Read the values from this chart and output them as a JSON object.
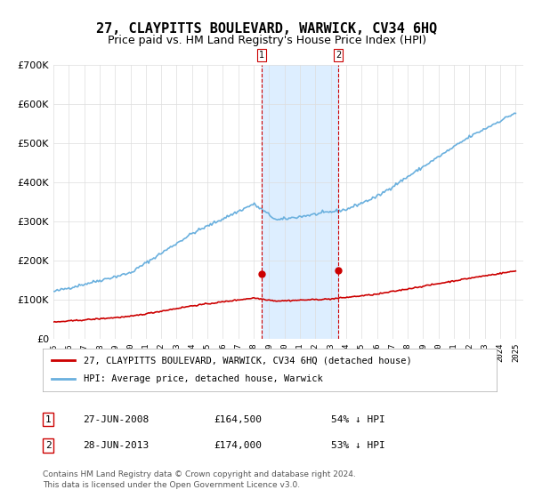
{
  "title": "27, CLAYPITTS BOULEVARD, WARWICK, CV34 6HQ",
  "subtitle": "Price paid vs. HM Land Registry's House Price Index (HPI)",
  "ylabel": "",
  "ylim": [
    0,
    700000
  ],
  "yticks": [
    0,
    100000,
    200000,
    300000,
    400000,
    500000,
    600000,
    700000
  ],
  "ytick_labels": [
    "£0",
    "£100K",
    "£200K",
    "£300K",
    "£400K",
    "£500K",
    "£600K",
    "£700K"
  ],
  "hpi_color": "#6ab0de",
  "price_color": "#cc0000",
  "marker_color": "#cc0000",
  "vline_color": "#cc0000",
  "shade_color": "#ddeeff",
  "transaction1": {
    "date_num": 2008.49,
    "price": 164500,
    "label": "1",
    "text": "27-JUN-2008",
    "amount": "£164,500",
    "pct": "54% ↓ HPI"
  },
  "transaction2": {
    "date_num": 2013.49,
    "price": 174000,
    "label": "2",
    "text": "28-JUN-2013",
    "amount": "£174,000",
    "pct": "53% ↓ HPI"
  },
  "legend_line1": "27, CLAYPITTS BOULEVARD, WARWICK, CV34 6HQ (detached house)",
  "legend_line2": "HPI: Average price, detached house, Warwick",
  "footer1": "Contains HM Land Registry data © Crown copyright and database right 2024.",
  "footer2": "This data is licensed under the Open Government Licence v3.0.",
  "bg_color": "#ffffff",
  "grid_color": "#dddddd",
  "title_fontsize": 11,
  "subtitle_fontsize": 9,
  "axis_fontsize": 8
}
